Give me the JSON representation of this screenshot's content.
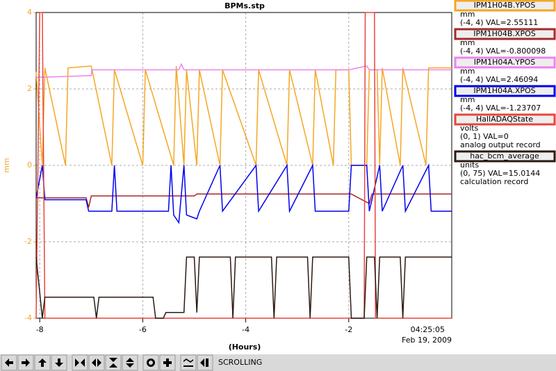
{
  "chart_data": {
    "type": "line",
    "title": "BPMs.stp",
    "xlabel": "(Hours)",
    "ylabel": "mm",
    "timestamp": "04:25:05",
    "date": "Feb 19, 2009",
    "xlim": [
      -8.07,
      0
    ],
    "ylim": [
      -4,
      4
    ],
    "xticks": [
      -8,
      -6,
      -4,
      -2
    ],
    "yticks": [
      -4,
      -2,
      0,
      2,
      4
    ],
    "grid": true,
    "axis_color": "#f0a830",
    "series": [
      {
        "name": "IPM1H04B.YPOS",
        "color": "#f5a623",
        "units": "mm",
        "legend_text": "(-4, 4) VAL=2.55111",
        "x": [
          -8.07,
          -7.95,
          -7.9,
          -7.5,
          -7.45,
          -7.0,
          -6.6,
          -6.55,
          -6.0,
          -5.95,
          -5.4,
          -5.35,
          -5.2,
          -5.15,
          -4.95,
          -4.9,
          -4.5,
          -4.45,
          -3.8,
          -3.75,
          -3.2,
          -3.15,
          -2.7,
          -2.65,
          -2.3,
          -2.25,
          -2.0,
          -1.95,
          -1.65,
          -1.6,
          -1.45,
          -1.4,
          -1.35,
          -1.0,
          -0.95,
          -0.5,
          -0.45,
          0
        ],
        "values": [
          2.45,
          0,
          2.55,
          0,
          2.55,
          2.6,
          0,
          2.5,
          0,
          2.5,
          0,
          2.6,
          0,
          2.5,
          0,
          2.5,
          0,
          2.5,
          0,
          2.5,
          0,
          2.5,
          0,
          2.5,
          0,
          2.5,
          2.5,
          0,
          0,
          2.5,
          2.5,
          0,
          2.55,
          0,
          2.55,
          0,
          2.55,
          2.55
        ]
      },
      {
        "name": "IPM1H04B.XPOS",
        "color": "#a52a2a",
        "units": "mm",
        "legend_text": "(-4, 4) VAL=-0.800098",
        "x": [
          -8.07,
          -7.5,
          -7.1,
          -7.05,
          -7.0,
          -5.0,
          -4.95,
          -1.95,
          -1.6,
          -1.55,
          0
        ],
        "values": [
          -0.85,
          -0.85,
          -0.85,
          -1.1,
          -0.8,
          -0.8,
          -0.75,
          -0.75,
          -1.0,
          -0.75,
          -0.75
        ]
      },
      {
        "name": "IPM1H04A.YPOS",
        "color": "#ee82ee",
        "units": "mm",
        "legend_text": "(-4, 4) VAL=2.46094",
        "x": [
          -8.07,
          -7.0,
          -6.99,
          -5.3,
          -5.25,
          -5.2,
          -2.0,
          -1.65,
          -1.6,
          0
        ],
        "values": [
          2.3,
          2.35,
          2.5,
          2.5,
          2.65,
          2.5,
          2.5,
          2.6,
          2.5,
          2.5
        ]
      },
      {
        "name": "IPM1H04A.XPOS",
        "color": "#0000ee",
        "units": "mm",
        "legend_text": "(-4, 4) VAL=-1.23707",
        "x": [
          -8.07,
          -7.95,
          -7.9,
          -7.1,
          -7.05,
          -6.6,
          -6.55,
          -6.5,
          -5.5,
          -5.45,
          -5.4,
          -5.3,
          -5.2,
          -5.15,
          -4.95,
          -4.9,
          -4.5,
          -4.45,
          -3.8,
          -3.75,
          -3.2,
          -3.15,
          -2.7,
          -2.65,
          -2.0,
          -1.95,
          -1.65,
          -1.6,
          -1.4,
          -1.35,
          -0.95,
          -0.9,
          -0.45,
          -0.4,
          0
        ],
        "values": [
          -0.85,
          0,
          -0.9,
          -0.9,
          -1.2,
          -1.2,
          0,
          -1.2,
          -1.2,
          0,
          -1.3,
          -1.5,
          0,
          -1.3,
          -1.4,
          -1.2,
          0,
          -1.2,
          0,
          -1.2,
          0,
          -1.2,
          0,
          -1.2,
          -1.2,
          0,
          0,
          -1.2,
          0,
          -1.2,
          0,
          -1.2,
          0,
          -1.2,
          -1.2
        ]
      },
      {
        "name": "HallADAQState",
        "color": "#e8453c",
        "units": "volts",
        "legend_text": "(0, 1) VAL=0",
        "record": "analog output record",
        "x": [
          -8.07,
          -8.0,
          -7.95,
          -7.9,
          -1.7,
          -1.68,
          -1.5,
          -1.48,
          0
        ],
        "values": [
          -4,
          4,
          4,
          -4,
          -4,
          4,
          4,
          -4,
          -4
        ]
      },
      {
        "name": "hac_bcm_average",
        "color": "#2b1a12",
        "units": "units",
        "legend_text": "(0, 75) VAL=15.0144",
        "record": "calculation record",
        "x": [
          -8.07,
          -7.95,
          -7.9,
          -6.95,
          -6.9,
          -6.85,
          -5.8,
          -5.75,
          -5.6,
          -5.55,
          -5.2,
          -5.15,
          -5.0,
          -4.95,
          -4.9,
          -4.3,
          -4.25,
          -4.2,
          -3.5,
          -3.45,
          -3.4,
          -2.8,
          -2.75,
          -2.7,
          -2.0,
          -1.95,
          -1.7,
          -1.65,
          -1.5,
          -1.45,
          -1.4,
          -1.0,
          -0.95,
          -0.9,
          0
        ],
        "values": [
          -2.4,
          -4,
          -3.45,
          -3.45,
          -4,
          -3.45,
          -3.45,
          -4,
          -4,
          -3.85,
          -3.85,
          -2.4,
          -2.4,
          -3.85,
          -2.4,
          -2.4,
          -4,
          -2.4,
          -2.4,
          -4,
          -2.4,
          -2.4,
          -4,
          -2.4,
          -2.4,
          -4,
          -4,
          -2.4,
          -2.4,
          -4,
          -2.4,
          -2.4,
          -4,
          -2.4,
          -2.4
        ]
      }
    ]
  },
  "toolbar": {
    "status": "SCROLLING"
  }
}
